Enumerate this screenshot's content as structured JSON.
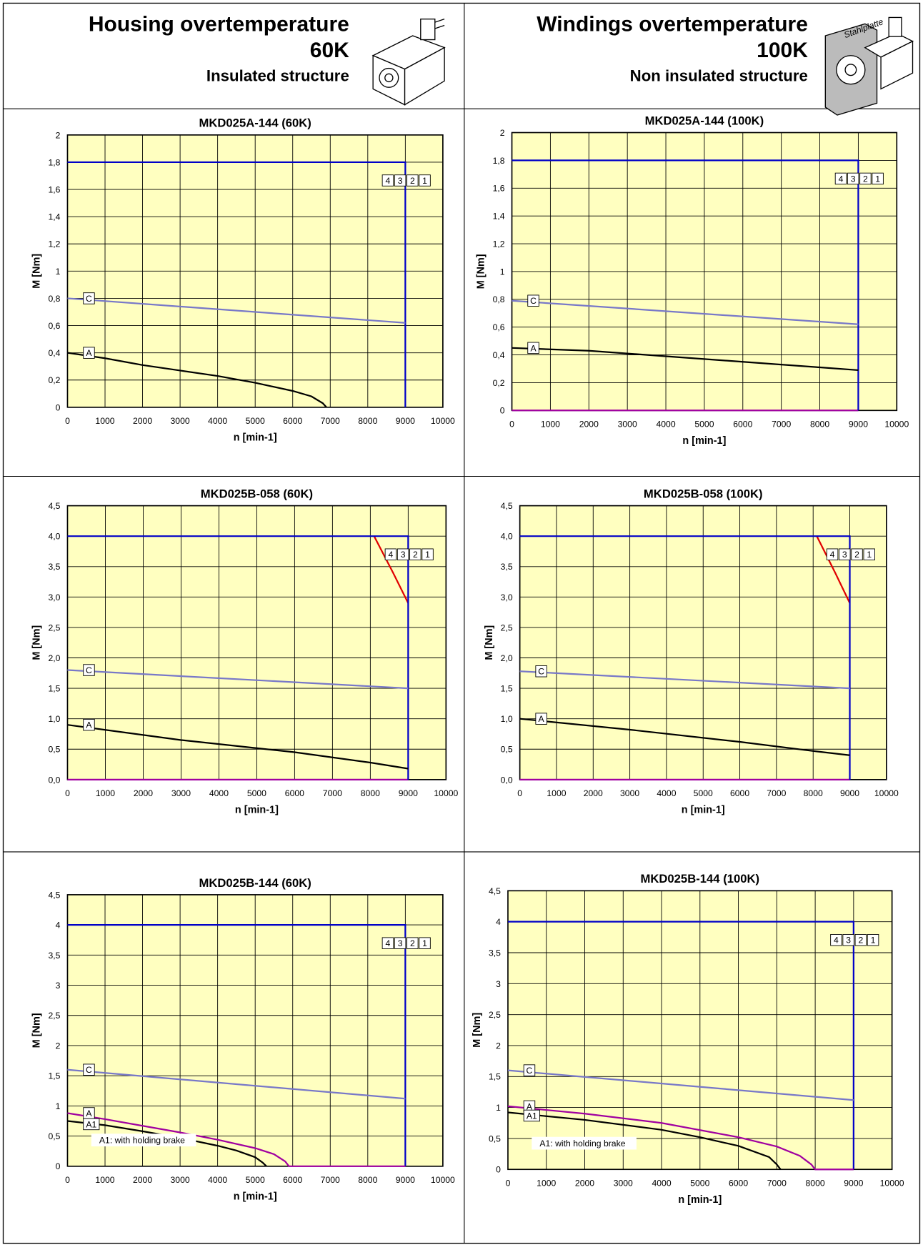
{
  "header": {
    "left": {
      "title": "Housing overtemperature",
      "temp": "60K",
      "structure": "Insulated structure"
    },
    "right": {
      "title": "Windings overtemperature",
      "temp": "100K",
      "structure": "Non insulated structure",
      "plate_label": "Stahlplatte"
    }
  },
  "chart_data": [
    {
      "type": "line",
      "title": "MKD025A-144 (60K)",
      "xlabel": "n [min-1]",
      "ylabel": "M [Nm]",
      "xlim": [
        0,
        10000
      ],
      "ylim": [
        0,
        2
      ],
      "xticks": [
        0,
        1000,
        2000,
        3000,
        4000,
        5000,
        6000,
        7000,
        8000,
        9000,
        10000
      ],
      "yticks": [
        0,
        {
          "value": 0.2,
          "label": "0,2"
        },
        {
          "value": 0.4,
          "label": "0,4"
        },
        {
          "value": 0.6,
          "label": "0,6"
        },
        {
          "value": 0.8,
          "label": "0,8"
        },
        1,
        {
          "value": 1.2,
          "label": "1,2"
        },
        {
          "value": 1.4,
          "label": "1,4"
        },
        {
          "value": 1.6,
          "label": "1,6"
        },
        {
          "value": 1.8,
          "label": "1,8"
        },
        2
      ],
      "grid": true,
      "series": [
        {
          "name": "C",
          "color": "#7878c8",
          "x": [
            0,
            9000
          ],
          "values": [
            0.8,
            0.62
          ]
        },
        {
          "name": "A",
          "color": "#000000",
          "x": [
            0,
            1000,
            2000,
            3000,
            4000,
            5000,
            6000,
            6500,
            6800,
            6900
          ],
          "values": [
            0.4,
            0.36,
            0.31,
            0.27,
            0.23,
            0.18,
            0.12,
            0.08,
            0.03,
            0
          ]
        }
      ],
      "limits": [
        {
          "color": "#0000c8",
          "x": [
            0,
            9000,
            9000
          ],
          "values": [
            1.8,
            1.8,
            0
          ]
        }
      ],
      "legend": [
        {
          "name": "4",
          "color": "#e00000"
        },
        {
          "name": "3",
          "color": "#0000c8"
        },
        {
          "name": "2",
          "color": "#a000a0"
        },
        {
          "name": "1",
          "color": "#008000"
        }
      ]
    },
    {
      "type": "line",
      "title": "MKD025A-144 (100K)",
      "xlabel": "n [min-1]",
      "ylabel": "M [Nm]",
      "xlim": [
        0,
        10000
      ],
      "ylim": [
        0,
        2
      ],
      "xticks": [
        0,
        1000,
        2000,
        3000,
        4000,
        5000,
        6000,
        7000,
        8000,
        9000,
        10000
      ],
      "yticks": [
        0,
        {
          "value": 0.2,
          "label": "0,2"
        },
        {
          "value": 0.4,
          "label": "0,4"
        },
        {
          "value": 0.6,
          "label": "0,6"
        },
        {
          "value": 0.8,
          "label": "0,8"
        },
        1,
        {
          "value": 1.2,
          "label": "1,2"
        },
        {
          "value": 1.4,
          "label": "1,4"
        },
        {
          "value": 1.6,
          "label": "1,6"
        },
        {
          "value": 1.8,
          "label": "1,8"
        },
        2
      ],
      "grid": true,
      "series": [
        {
          "name": "C",
          "color": "#7878c8",
          "x": [
            0,
            9000
          ],
          "values": [
            0.79,
            0.62
          ]
        },
        {
          "name": "A",
          "color": "#000000",
          "x": [
            0,
            2000,
            4000,
            6000,
            8000,
            9000
          ],
          "values": [
            0.45,
            0.43,
            0.39,
            0.35,
            0.31,
            0.29
          ]
        }
      ],
      "limits": [
        {
          "color": "#a000a0",
          "x": [
            0,
            9000
          ],
          "values": [
            0,
            0
          ]
        },
        {
          "color": "#0000c8",
          "x": [
            0,
            9000,
            9000
          ],
          "values": [
            1.8,
            1.8,
            0
          ]
        }
      ],
      "legend": [
        {
          "name": "4",
          "color": "#e00000"
        },
        {
          "name": "3",
          "color": "#0000c8"
        },
        {
          "name": "2",
          "color": "#a000a0"
        },
        {
          "name": "1",
          "color": "#008000"
        }
      ]
    },
    {
      "type": "line",
      "title": "MKD025B-058 (60K)",
      "xlabel": "n [min-1]",
      "ylabel": "M [Nm]",
      "xlim": [
        0,
        10000
      ],
      "ylim": [
        0,
        4.5
      ],
      "xticks": [
        0,
        1000,
        2000,
        3000,
        4000,
        5000,
        6000,
        7000,
        8000,
        9000,
        10000
      ],
      "yticks": [
        {
          "value": 0,
          "label": "0,0"
        },
        {
          "value": 0.5,
          "label": "0,5"
        },
        {
          "value": 1,
          "label": "1,0"
        },
        {
          "value": 1.5,
          "label": "1,5"
        },
        {
          "value": 2,
          "label": "2,0"
        },
        {
          "value": 2.5,
          "label": "2,5"
        },
        {
          "value": 3,
          "label": "3,0"
        },
        {
          "value": 3.5,
          "label": "3,5"
        },
        {
          "value": 4,
          "label": "4,0"
        },
        {
          "value": 4.5,
          "label": "4,5"
        }
      ],
      "grid": true,
      "series": [
        {
          "name": "C",
          "color": "#7878c8",
          "x": [
            0,
            9000
          ],
          "values": [
            1.8,
            1.5
          ]
        },
        {
          "name": "A",
          "color": "#000000",
          "x": [
            0,
            3000,
            6000,
            8000,
            9000
          ],
          "values": [
            0.9,
            0.65,
            0.45,
            0.28,
            0.18
          ]
        }
      ],
      "limits": [
        {
          "color": "#a000a0",
          "x": [
            0,
            9000
          ],
          "values": [
            0,
            0
          ]
        },
        {
          "color": "#e00000",
          "x": [
            8100,
            8600,
            9000
          ],
          "values": [
            4.0,
            3.4,
            2.9
          ]
        },
        {
          "color": "#0000c8",
          "x": [
            0,
            9000,
            9000
          ],
          "values": [
            4.0,
            4.0,
            0
          ]
        }
      ],
      "legend": [
        {
          "name": "4",
          "color": "#e00000"
        },
        {
          "name": "3",
          "color": "#0000c8"
        },
        {
          "name": "2",
          "color": "#a000a0"
        },
        {
          "name": "1",
          "color": "#008000"
        }
      ]
    },
    {
      "type": "line",
      "title": "MKD025B-058 (100K)",
      "xlabel": "n [min-1]",
      "ylabel": "M [Nm]",
      "xlim": [
        0,
        10000
      ],
      "ylim": [
        0,
        4.5
      ],
      "xticks": [
        0,
        1000,
        2000,
        3000,
        4000,
        5000,
        6000,
        7000,
        8000,
        9000,
        10000
      ],
      "yticks": [
        {
          "value": 0,
          "label": "0,0"
        },
        {
          "value": 0.5,
          "label": "0,5"
        },
        {
          "value": 1,
          "label": "1,0"
        },
        {
          "value": 1.5,
          "label": "1,5"
        },
        {
          "value": 2,
          "label": "2,0"
        },
        {
          "value": 2.5,
          "label": "2,5"
        },
        {
          "value": 3,
          "label": "3,0"
        },
        {
          "value": 3.5,
          "label": "3,5"
        },
        {
          "value": 4,
          "label": "4,0"
        },
        {
          "value": 4.5,
          "label": "4,5"
        }
      ],
      "grid": true,
      "series": [
        {
          "name": "C",
          "color": "#7878c8",
          "x": [
            0,
            9000
          ],
          "values": [
            1.78,
            1.5
          ]
        },
        {
          "name": "A",
          "color": "#000000",
          "x": [
            0,
            3000,
            6000,
            8000,
            9000
          ],
          "values": [
            1.0,
            0.82,
            0.62,
            0.47,
            0.4
          ]
        }
      ],
      "limits": [
        {
          "color": "#a000a0",
          "x": [
            0,
            9000
          ],
          "values": [
            0,
            0
          ]
        },
        {
          "color": "#e00000",
          "x": [
            8100,
            8600,
            9000
          ],
          "values": [
            4.0,
            3.4,
            2.9
          ]
        },
        {
          "color": "#0000c8",
          "x": [
            0,
            9000,
            9000
          ],
          "values": [
            4.0,
            4.0,
            0
          ]
        }
      ],
      "legend": [
        {
          "name": "4",
          "color": "#e00000"
        },
        {
          "name": "3",
          "color": "#0000c8"
        },
        {
          "name": "2",
          "color": "#a000a0"
        },
        {
          "name": "1",
          "color": "#008000"
        }
      ]
    },
    {
      "type": "line",
      "title": "MKD025B-144 (60K)",
      "xlabel": "n [min-1]",
      "ylabel": "M [Nm]",
      "xlim": [
        0,
        10000
      ],
      "ylim": [
        0,
        4.5
      ],
      "xticks": [
        0,
        1000,
        2000,
        3000,
        4000,
        5000,
        6000,
        7000,
        8000,
        9000,
        10000
      ],
      "yticks": [
        0,
        {
          "value": 0.5,
          "label": "0,5"
        },
        1,
        {
          "value": 1.5,
          "label": "1,5"
        },
        2,
        {
          "value": 2.5,
          "label": "2,5"
        },
        3,
        {
          "value": 3.5,
          "label": "3,5"
        },
        4,
        {
          "value": 4.5,
          "label": "4,5"
        }
      ],
      "grid": true,
      "series": [
        {
          "name": "C",
          "color": "#7878c8",
          "x": [
            0,
            9000
          ],
          "values": [
            1.6,
            1.12
          ]
        },
        {
          "name": "A",
          "color": "#a000a0",
          "x": [
            0,
            1000,
            2000,
            3000,
            4000,
            5000,
            5500,
            5800,
            5900,
            9000
          ],
          "values": [
            0.88,
            0.78,
            0.67,
            0.56,
            0.44,
            0.3,
            0.2,
            0.08,
            0,
            0
          ]
        },
        {
          "name": "A1",
          "color": "#000000",
          "x": [
            0,
            1000,
            2000,
            3000,
            4000,
            4500,
            5000,
            5200,
            5300
          ],
          "values": [
            0.75,
            0.68,
            0.58,
            0.47,
            0.34,
            0.26,
            0.15,
            0.06,
            0
          ]
        }
      ],
      "limits": [
        {
          "color": "#0000c8",
          "x": [
            0,
            9000,
            9000
          ],
          "values": [
            4.0,
            4.0,
            0
          ]
        }
      ],
      "legend": [
        {
          "name": "4",
          "color": "#e00000"
        },
        {
          "name": "3",
          "color": "#0000c8"
        },
        {
          "name": "2",
          "color": "#a000a0"
        },
        {
          "name": "1",
          "color": "#008000"
        }
      ],
      "annotation": "A1: with holding brake"
    },
    {
      "type": "line",
      "title": "MKD025B-144 (100K)",
      "xlabel": "n [min-1]",
      "ylabel": "M [Nm]",
      "xlim": [
        0,
        10000
      ],
      "ylim": [
        0,
        4.5
      ],
      "xticks": [
        0,
        1000,
        2000,
        3000,
        4000,
        5000,
        6000,
        7000,
        8000,
        9000,
        10000
      ],
      "yticks": [
        0,
        {
          "value": 0.5,
          "label": "0,5"
        },
        1,
        {
          "value": 1.5,
          "label": "1,5"
        },
        2,
        {
          "value": 2.5,
          "label": "2,5"
        },
        3,
        {
          "value": 3.5,
          "label": "3,5"
        },
        4,
        {
          "value": 4.5,
          "label": "4,5"
        }
      ],
      "grid": true,
      "series": [
        {
          "name": "C",
          "color": "#7878c8",
          "x": [
            0,
            9000
          ],
          "values": [
            1.6,
            1.12
          ]
        },
        {
          "name": "A",
          "color": "#a000a0",
          "x": [
            0,
            2000,
            4000,
            6000,
            7000,
            7600,
            7900,
            8000,
            9000
          ],
          "values": [
            1.02,
            0.9,
            0.75,
            0.52,
            0.37,
            0.22,
            0.08,
            0,
            0
          ]
        },
        {
          "name": "A1",
          "color": "#000000",
          "x": [
            0,
            2000,
            4000,
            5000,
            6000,
            6800,
            7000,
            7100
          ],
          "values": [
            0.92,
            0.8,
            0.64,
            0.52,
            0.38,
            0.2,
            0.08,
            0
          ]
        }
      ],
      "limits": [
        {
          "color": "#0000c8",
          "x": [
            0,
            9000,
            9000
          ],
          "values": [
            4.0,
            4.0,
            0
          ]
        }
      ],
      "legend": [
        {
          "name": "4",
          "color": "#e00000"
        },
        {
          "name": "3",
          "color": "#0000c8"
        },
        {
          "name": "2",
          "color": "#a000a0"
        },
        {
          "name": "1",
          "color": "#008000"
        }
      ],
      "annotation": "A1: with holding brake"
    }
  ]
}
